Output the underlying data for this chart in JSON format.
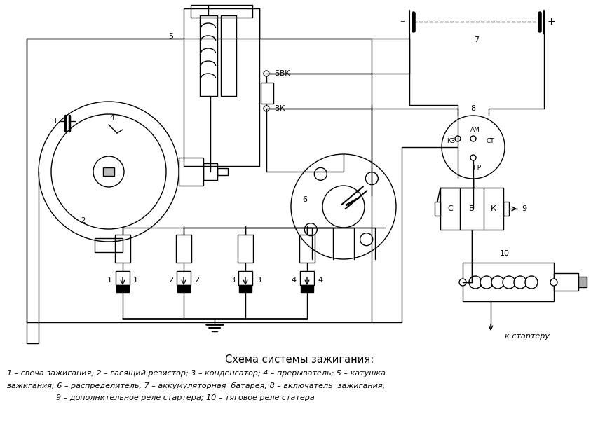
{
  "title": "Схема системы зажигания:",
  "caption_line1": "1 – свеча зажигания; 2 – гасящий резистор; 3 – конденсатор; 4 – прерыватель; 5 – катушка",
  "caption_line2": "зажигания; 6 – распределитель; 7 – аккумуляторная  батарея; 8 – включатель  зажигания;",
  "caption_line3": "9 – дополнительное реле стартера; 10 – тяговое реле статера",
  "bg_color": "#ffffff",
  "line_color": "#000000"
}
